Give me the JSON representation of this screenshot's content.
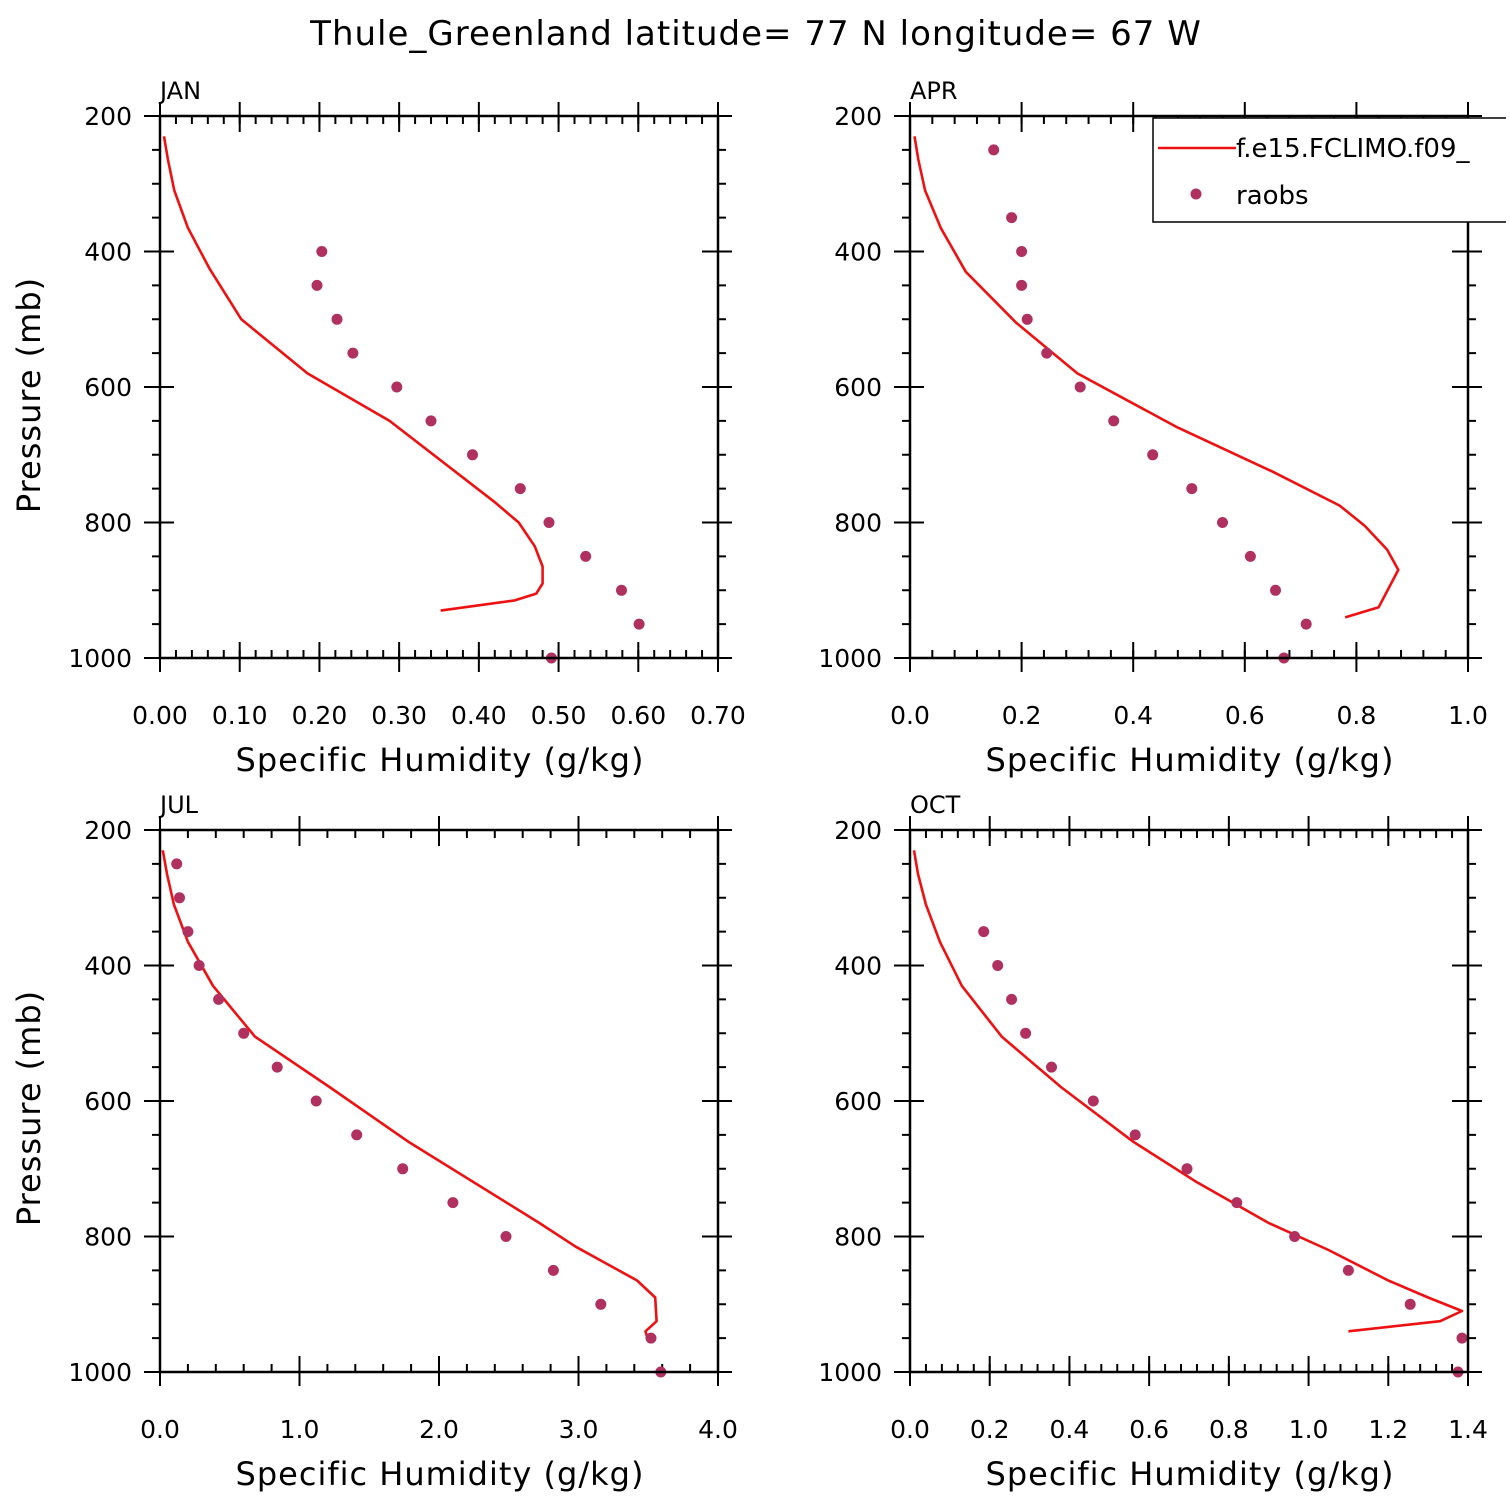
{
  "title": "Thule_Greenland  latitude= 77 N longitude= 67 W",
  "legend": {
    "items": [
      {
        "label": "f.e15.FCLIMO.f09_",
        "kind": "line",
        "color": "#ee1111"
      },
      {
        "label": "raobs",
        "kind": "marker",
        "color": "#b03060"
      }
    ]
  },
  "chart_data": [
    {
      "type": "line",
      "panel": "JAN",
      "title": "JAN",
      "xlabel": "Specific Humidity (g/kg)",
      "ylabel": "Pressure (mb)",
      "xlim": [
        0,
        0.7
      ],
      "ylim": [
        1000,
        200
      ],
      "y_reversed": true,
      "xticks": [
        0,
        0.1,
        0.2,
        0.3,
        0.4,
        0.5,
        0.6,
        0.7
      ],
      "xtick_labels": [
        "0.00",
        "0.10",
        "0.20",
        "0.30",
        "0.40",
        "0.50",
        "0.60",
        "0.70"
      ],
      "yticks": [
        200,
        400,
        600,
        800,
        1000
      ],
      "ytick_labels": [
        "200",
        "400",
        "600",
        "800",
        "1000"
      ],
      "xminor": 0.02,
      "yminor": 50,
      "series": [
        {
          "name": "f.e15.FCLIMO.f09_",
          "kind": "line",
          "x": [
            0.005,
            0.01,
            0.018,
            0.035,
            0.062,
            0.102,
            0.185,
            0.288,
            0.42,
            0.45,
            0.47,
            0.48,
            0.48,
            0.472,
            0.445,
            0.352
          ],
          "y": [
            230,
            265,
            310,
            365,
            425,
            500,
            580,
            650,
            770,
            800,
            835,
            865,
            890,
            905,
            915,
            930
          ]
        },
        {
          "name": "raobs",
          "kind": "scatter",
          "x": [
            0.203,
            0.197,
            0.222,
            0.242,
            0.297,
            0.34,
            0.392,
            0.452,
            0.488,
            0.534,
            0.579,
            0.601,
            0.491
          ],
          "y": [
            400,
            450,
            500,
            550,
            600,
            650,
            700,
            750,
            800,
            850,
            900,
            950,
            1000
          ]
        }
      ]
    },
    {
      "type": "line",
      "panel": "APR",
      "title": "APR",
      "xlabel": "Specific Humidity (g/kg)",
      "ylabel": "",
      "xlim": [
        0,
        1.0
      ],
      "ylim": [
        1000,
        200
      ],
      "y_reversed": true,
      "xticks": [
        0,
        0.2,
        0.4,
        0.6,
        0.8,
        1.0
      ],
      "xtick_labels": [
        "0.0",
        "0.2",
        "0.4",
        "0.6",
        "0.8",
        "1.0"
      ],
      "yticks": [
        200,
        400,
        600,
        800,
        1000
      ],
      "ytick_labels": [
        "200",
        "400",
        "600",
        "800",
        "1000"
      ],
      "xminor": 0.04,
      "yminor": 50,
      "series": [
        {
          "name": "f.e15.FCLIMO.f09_",
          "kind": "line",
          "x": [
            0.008,
            0.015,
            0.027,
            0.055,
            0.1,
            0.19,
            0.3,
            0.48,
            0.65,
            0.77,
            0.815,
            0.855,
            0.875,
            0.84,
            0.78
          ],
          "y": [
            230,
            265,
            310,
            365,
            430,
            505,
            580,
            660,
            725,
            775,
            805,
            840,
            870,
            925,
            940
          ]
        },
        {
          "name": "raobs",
          "kind": "scatter",
          "x": [
            0.15,
            0.182,
            0.2,
            0.2,
            0.21,
            0.245,
            0.305,
            0.365,
            0.435,
            0.505,
            0.56,
            0.61,
            0.655,
            0.71,
            0.67
          ],
          "y": [
            250,
            350,
            400,
            450,
            500,
            550,
            600,
            650,
            700,
            750,
            800,
            850,
            900,
            950,
            1000
          ]
        }
      ]
    },
    {
      "type": "line",
      "panel": "JUL",
      "title": "JUL",
      "xlabel": "Specific Humidity (g/kg)",
      "ylabel": "Pressure (mb)",
      "xlim": [
        0,
        4.0
      ],
      "ylim": [
        1000,
        200
      ],
      "y_reversed": true,
      "xticks": [
        0,
        1,
        2,
        3,
        4
      ],
      "xtick_labels": [
        "0.0",
        "1.0",
        "2.0",
        "3.0",
        "4.0"
      ],
      "yticks": [
        200,
        400,
        600,
        800,
        1000
      ],
      "ytick_labels": [
        "200",
        "400",
        "600",
        "800",
        "1000"
      ],
      "xminor": 0.2,
      "yminor": 50,
      "series": [
        {
          "name": "f.e15.FCLIMO.f09_",
          "kind": "line",
          "x": [
            0.02,
            0.05,
            0.1,
            0.2,
            0.38,
            0.68,
            1.22,
            1.78,
            2.72,
            2.98,
            3.2,
            3.42,
            3.55,
            3.56,
            3.48,
            3.5
          ],
          "y": [
            230,
            265,
            310,
            365,
            430,
            505,
            580,
            660,
            780,
            815,
            840,
            865,
            890,
            925,
            940,
            955
          ]
        },
        {
          "name": "raobs",
          "kind": "scatter",
          "x": [
            0.12,
            0.14,
            0.2,
            0.28,
            0.42,
            0.6,
            0.84,
            1.12,
            1.41,
            1.74,
            2.1,
            2.48,
            2.82,
            3.16,
            3.52,
            3.59
          ],
          "y": [
            250,
            300,
            350,
            400,
            450,
            500,
            550,
            600,
            650,
            700,
            750,
            800,
            850,
            900,
            950,
            1000
          ]
        }
      ]
    },
    {
      "type": "line",
      "panel": "OCT",
      "title": "OCT",
      "xlabel": "Specific Humidity (g/kg)",
      "ylabel": "",
      "xlim": [
        0,
        1.4
      ],
      "ylim": [
        1000,
        200
      ],
      "y_reversed": true,
      "xticks": [
        0,
        0.2,
        0.4,
        0.6,
        0.8,
        1.0,
        1.2,
        1.4
      ],
      "xtick_labels": [
        "0.0",
        "0.2",
        "0.4",
        "0.6",
        "0.8",
        "1.0",
        "1.2",
        "1.4"
      ],
      "yticks": [
        200,
        400,
        600,
        800,
        1000
      ],
      "ytick_labels": [
        "200",
        "400",
        "600",
        "800",
        "1000"
      ],
      "xminor": 0.04,
      "yminor": 50,
      "series": [
        {
          "name": "f.e15.FCLIMO.f09_",
          "kind": "line",
          "x": [
            0.01,
            0.02,
            0.04,
            0.075,
            0.13,
            0.23,
            0.38,
            0.56,
            0.72,
            0.9,
            1.05,
            1.2,
            1.3,
            1.385,
            1.33,
            1.1
          ],
          "y": [
            230,
            265,
            310,
            365,
            430,
            505,
            580,
            660,
            720,
            780,
            820,
            865,
            890,
            910,
            925,
            940
          ]
        },
        {
          "name": "raobs",
          "kind": "scatter",
          "x": [
            0.185,
            0.22,
            0.255,
            0.29,
            0.355,
            0.46,
            0.565,
            0.695,
            0.82,
            0.965,
            1.1,
            1.255,
            1.385,
            1.375
          ],
          "y": [
            350,
            400,
            450,
            500,
            550,
            600,
            650,
            700,
            750,
            800,
            850,
            900,
            950,
            1000
          ]
        }
      ]
    }
  ]
}
